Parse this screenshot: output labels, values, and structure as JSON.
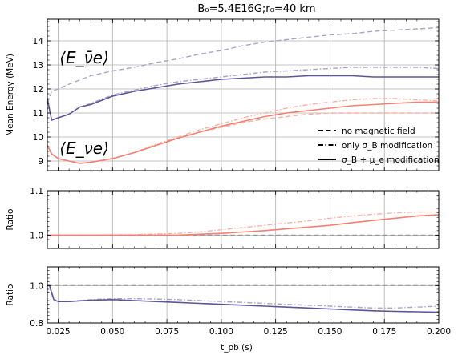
{
  "figure": {
    "title": "B₀=5.4E16G;r₀=40 km",
    "xlabel": "t_pb (s)"
  },
  "colors": {
    "antinue": "#5b5796",
    "antinue_light": "#a8a6c8",
    "nue": "#f47f72",
    "nue_light": "#f8b2a8",
    "grid": "#b0b0b0",
    "reference": "#999999"
  },
  "legend": {
    "items": [
      {
        "style": "dashed",
        "label": "no magnetic field"
      },
      {
        "style": "dashdot",
        "label": "only σ_B modification"
      },
      {
        "style": "solid",
        "label": "σ_B + μ_e modification"
      }
    ]
  },
  "annotations": {
    "antinue_label": "⟨E_ν̄e⟩",
    "nue_label": "⟨E_νe⟩"
  },
  "chart_data": [
    {
      "type": "line",
      "name": "mean-energy-panel",
      "ylabel": "Mean Energy (MeV)",
      "xlim": [
        0.02,
        0.2
      ],
      "ylim": [
        8.6,
        14.9
      ],
      "xticks": [
        "0.025",
        "0.050",
        "0.075",
        "0.100",
        "0.125",
        "0.150",
        "0.175",
        "0.200"
      ],
      "yticks": [
        "9",
        "10",
        "11",
        "12",
        "13",
        "14"
      ],
      "grid": true,
      "legend_position": "lower-right",
      "series": [
        {
          "species": "antinue",
          "style": "dashed",
          "x": [
            0.02,
            0.022,
            0.025,
            0.03,
            0.04,
            0.05,
            0.06,
            0.07,
            0.08,
            0.09,
            0.1,
            0.11,
            0.12,
            0.13,
            0.14,
            0.15,
            0.16,
            0.17,
            0.18,
            0.19,
            0.2
          ],
          "y": [
            11.4,
            11.9,
            12.0,
            12.2,
            12.55,
            12.75,
            12.9,
            13.1,
            13.25,
            13.45,
            13.6,
            13.8,
            13.95,
            14.05,
            14.15,
            14.25,
            14.3,
            14.4,
            14.45,
            14.5,
            14.55
          ]
        },
        {
          "species": "antinue",
          "style": "dashdot",
          "x": [
            0.02,
            0.022,
            0.025,
            0.03,
            0.035,
            0.04,
            0.05,
            0.06,
            0.07,
            0.08,
            0.09,
            0.1,
            0.11,
            0.12,
            0.13,
            0.14,
            0.15,
            0.16,
            0.17,
            0.18,
            0.19,
            0.2
          ],
          "y": [
            11.6,
            10.7,
            10.8,
            10.95,
            11.25,
            11.4,
            11.75,
            11.95,
            12.15,
            12.3,
            12.4,
            12.5,
            12.6,
            12.7,
            12.75,
            12.8,
            12.85,
            12.9,
            12.9,
            12.9,
            12.9,
            12.85
          ]
        },
        {
          "species": "antinue",
          "style": "solid",
          "x": [
            0.02,
            0.022,
            0.025,
            0.03,
            0.035,
            0.04,
            0.05,
            0.06,
            0.07,
            0.08,
            0.09,
            0.1,
            0.11,
            0.12,
            0.13,
            0.14,
            0.15,
            0.16,
            0.17,
            0.18,
            0.19,
            0.2
          ],
          "y": [
            11.6,
            10.7,
            10.8,
            10.95,
            11.25,
            11.35,
            11.7,
            11.9,
            12.05,
            12.2,
            12.3,
            12.4,
            12.45,
            12.5,
            12.5,
            12.55,
            12.55,
            12.55,
            12.5,
            12.5,
            12.5,
            12.5
          ]
        },
        {
          "species": "nue",
          "style": "dashed",
          "x": [
            0.02,
            0.022,
            0.025,
            0.03,
            0.035,
            0.04,
            0.05,
            0.06,
            0.07,
            0.08,
            0.09,
            0.1,
            0.11,
            0.12,
            0.13,
            0.14,
            0.15,
            0.16,
            0.17,
            0.18,
            0.19,
            0.2
          ],
          "y": [
            9.65,
            9.3,
            9.1,
            9.0,
            8.9,
            8.95,
            9.1,
            9.35,
            9.65,
            9.95,
            10.2,
            10.4,
            10.6,
            10.75,
            10.85,
            10.95,
            11.0,
            11.0,
            11.0,
            11.0,
            11.0,
            11.0
          ]
        },
        {
          "species": "nue",
          "style": "dashdot",
          "x": [
            0.02,
            0.022,
            0.025,
            0.03,
            0.035,
            0.04,
            0.05,
            0.06,
            0.07,
            0.08,
            0.09,
            0.1,
            0.11,
            0.12,
            0.13,
            0.14,
            0.15,
            0.16,
            0.17,
            0.18,
            0.19,
            0.2
          ],
          "y": [
            9.65,
            9.3,
            9.1,
            9.0,
            8.9,
            8.95,
            9.1,
            9.35,
            9.7,
            10.0,
            10.3,
            10.55,
            10.8,
            11.0,
            11.2,
            11.35,
            11.45,
            11.55,
            11.6,
            11.6,
            11.55,
            11.5
          ]
        },
        {
          "species": "nue",
          "style": "solid",
          "x": [
            0.02,
            0.022,
            0.025,
            0.03,
            0.035,
            0.04,
            0.05,
            0.06,
            0.07,
            0.08,
            0.09,
            0.1,
            0.11,
            0.12,
            0.13,
            0.14,
            0.15,
            0.16,
            0.17,
            0.18,
            0.19,
            0.2
          ],
          "y": [
            9.65,
            9.3,
            9.1,
            9.0,
            8.9,
            8.95,
            9.1,
            9.35,
            9.65,
            9.95,
            10.2,
            10.45,
            10.65,
            10.85,
            11.0,
            11.1,
            11.2,
            11.3,
            11.35,
            11.4,
            11.45,
            11.45
          ]
        }
      ]
    },
    {
      "type": "line",
      "name": "nue-ratio-panel",
      "ylabel": "Ratio",
      "xlim": [
        0.02,
        0.2
      ],
      "ylim": [
        0.97,
        1.1
      ],
      "xticks": [
        "0.025",
        "0.050",
        "0.075",
        "0.100",
        "0.125",
        "0.150",
        "0.175",
        "0.200"
      ],
      "yticks": [
        "1.0",
        "1.1"
      ],
      "grid": true,
      "reference_line": 1.0,
      "series": [
        {
          "species": "nue",
          "style": "dashdot",
          "x": [
            0.02,
            0.04,
            0.06,
            0.08,
            0.09,
            0.1,
            0.11,
            0.12,
            0.13,
            0.14,
            0.15,
            0.16,
            0.17,
            0.18,
            0.19,
            0.2
          ],
          "y": [
            1.0,
            1.0,
            1.001,
            1.004,
            1.007,
            1.012,
            1.017,
            1.022,
            1.027,
            1.032,
            1.038,
            1.043,
            1.047,
            1.05,
            1.052,
            1.052
          ]
        },
        {
          "species": "nue",
          "style": "solid",
          "x": [
            0.02,
            0.04,
            0.06,
            0.08,
            0.09,
            0.1,
            0.11,
            0.12,
            0.13,
            0.14,
            0.15,
            0.16,
            0.17,
            0.18,
            0.19,
            0.2
          ],
          "y": [
            1.0,
            1.0,
            1.0,
            1.0,
            1.002,
            1.004,
            1.007,
            1.01,
            1.014,
            1.018,
            1.022,
            1.028,
            1.033,
            1.038,
            1.043,
            1.046
          ]
        }
      ]
    },
    {
      "type": "line",
      "name": "antinue-ratio-panel",
      "ylabel": "Ratio",
      "xlim": [
        0.02,
        0.2
      ],
      "ylim": [
        0.8,
        1.1
      ],
      "xticks": [
        "0.025",
        "0.050",
        "0.075",
        "0.100",
        "0.125",
        "0.150",
        "0.175",
        "0.200"
      ],
      "yticks": [
        "0.8",
        "1.0"
      ],
      "grid": true,
      "reference_line": 1.0,
      "series": [
        {
          "species": "antinue",
          "style": "dashdot",
          "x": [
            0.02,
            0.021,
            0.022,
            0.023,
            0.025,
            0.03,
            0.04,
            0.05,
            0.06,
            0.07,
            0.08,
            0.09,
            0.1,
            0.11,
            0.12,
            0.13,
            0.14,
            0.15,
            0.16,
            0.17,
            0.18,
            0.19,
            0.2
          ],
          "y": [
            1.0,
            1.0,
            0.97,
            0.93,
            0.915,
            0.915,
            0.925,
            0.93,
            0.93,
            0.928,
            0.925,
            0.92,
            0.915,
            0.91,
            0.905,
            0.9,
            0.895,
            0.89,
            0.885,
            0.88,
            0.88,
            0.885,
            0.89
          ]
        },
        {
          "species": "antinue",
          "style": "solid",
          "x": [
            0.02,
            0.021,
            0.022,
            0.023,
            0.025,
            0.03,
            0.04,
            0.05,
            0.06,
            0.07,
            0.08,
            0.09,
            0.1,
            0.11,
            0.12,
            0.13,
            0.14,
            0.15,
            0.16,
            0.17,
            0.18,
            0.19,
            0.2
          ],
          "y": [
            1.0,
            1.0,
            0.96,
            0.925,
            0.915,
            0.915,
            0.922,
            0.925,
            0.92,
            0.915,
            0.91,
            0.905,
            0.9,
            0.895,
            0.89,
            0.885,
            0.88,
            0.875,
            0.87,
            0.865,
            0.862,
            0.86,
            0.858
          ]
        }
      ]
    }
  ]
}
